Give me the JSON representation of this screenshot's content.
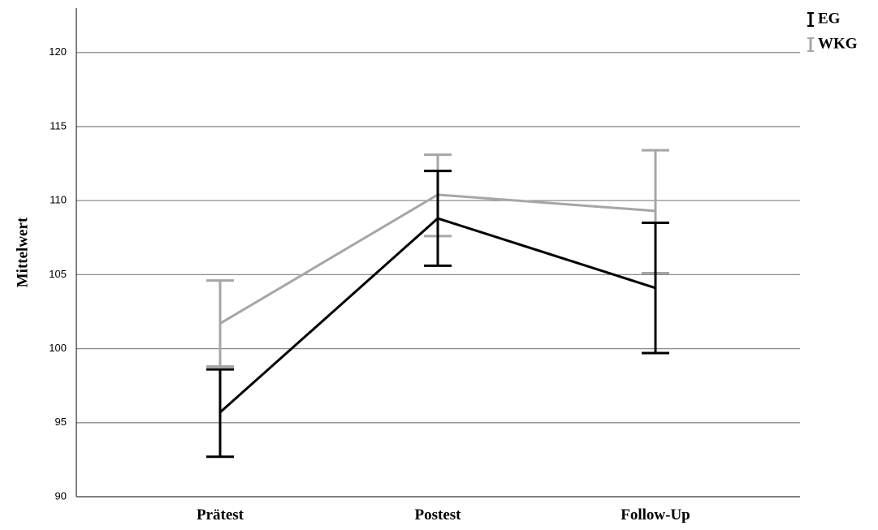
{
  "chart_data": {
    "type": "line",
    "categories": [
      "Prätest",
      "Postest",
      "Follow-Up"
    ],
    "ylabel": "Mittelwert",
    "ylim": [
      90,
      123
    ],
    "yticks": [
      90,
      95,
      100,
      105,
      110,
      115,
      120
    ],
    "grid": true,
    "legend_position": "top-right",
    "error_bars": true,
    "series": [
      {
        "name": "EG",
        "color": "#000000",
        "values": [
          95.7,
          108.8,
          104.1
        ],
        "error_low": [
          92.7,
          105.6,
          99.7
        ],
        "error_high": [
          98.6,
          112.0,
          108.5
        ]
      },
      {
        "name": "WKG",
        "color": "#a6a6a6",
        "values": [
          101.7,
          110.4,
          109.3
        ],
        "error_low": [
          98.8,
          107.6,
          105.1
        ],
        "error_high": [
          104.6,
          113.1,
          113.4
        ]
      }
    ]
  }
}
